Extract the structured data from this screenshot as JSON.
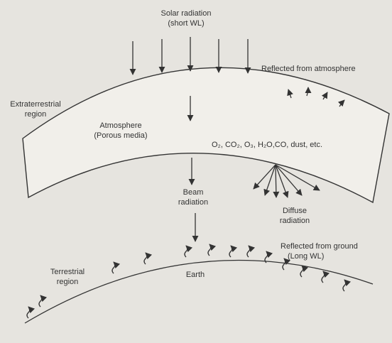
{
  "labels": {
    "solar": [
      "Solar radiation",
      "(short WL)"
    ],
    "reflected_atmosphere": "Reflected from atmosphere",
    "extraterrestrial": [
      "Extraterrestrial",
      "region"
    ],
    "atmosphere": [
      "Atmosphere",
      "(Porous media)"
    ],
    "constituents": "O₂, CO₂, O₃, H₂O,CO, dust, etc.",
    "beam": [
      "Beam",
      "radiation"
    ],
    "diffuse": [
      "Diffuse",
      "radiation"
    ],
    "reflected_ground": [
      "Reflected from ground",
      "(Long WL)"
    ],
    "terrestrial": [
      "Terrestrial",
      "region"
    ],
    "earth": "Earth"
  }
}
